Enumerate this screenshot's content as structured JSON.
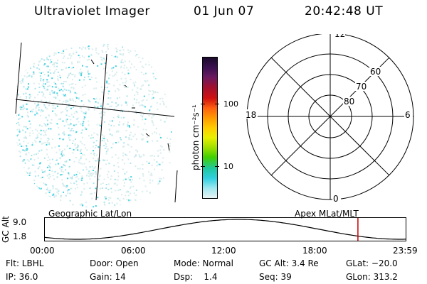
{
  "header": {
    "instrument": "Ultraviolet Imager",
    "date": "01 Jun 07",
    "time": "20:42:48 UT"
  },
  "colorbar": {
    "unit_label": "photon cm⁻²s⁻¹",
    "ticks": [
      "100",
      "10"
    ],
    "colors": [
      "#1a0a2a",
      "#3a1050",
      "#6a1a60",
      "#a01030",
      "#d01010",
      "#ff6010",
      "#ff9a00",
      "#ffcc00",
      "#e8f000",
      "#a0e000",
      "#40d000",
      "#20c8a0",
      "#30d0e0",
      "#a0e8f0",
      "#e8f4f4"
    ]
  },
  "polar_plot": {
    "mlt_labels": {
      "top": "12",
      "bottom": "0",
      "left": "18",
      "right": "6"
    },
    "lat_labels": [
      "60",
      "70",
      "80"
    ]
  },
  "orbit_panel": {
    "left_label": "Geographic Lat/Lon",
    "right_label": "Apex MLat/MLT",
    "y_axis_label": "GC Alt",
    "y_ticks": [
      "9.0",
      "1.8"
    ],
    "x_ticks": [
      "00:00",
      "06:00",
      "12:00",
      "18:00",
      "23:59"
    ],
    "marker_color": "#cc0000",
    "marker_fraction": 0.866
  },
  "info": {
    "row1": {
      "flt": "Flt: LBHL",
      "door": "Door: Open",
      "mode": "Mode: Normal",
      "gc_alt": "GC Alt: 3.4 Re",
      "glat": "GLat: −20.0"
    },
    "row2": {
      "ip": "IP: 36.0",
      "gain": "Gain: 14",
      "dsp": "Dsp:    1.4",
      "seq": "Seq: 39",
      "glon": "GLon: 313.2"
    }
  }
}
